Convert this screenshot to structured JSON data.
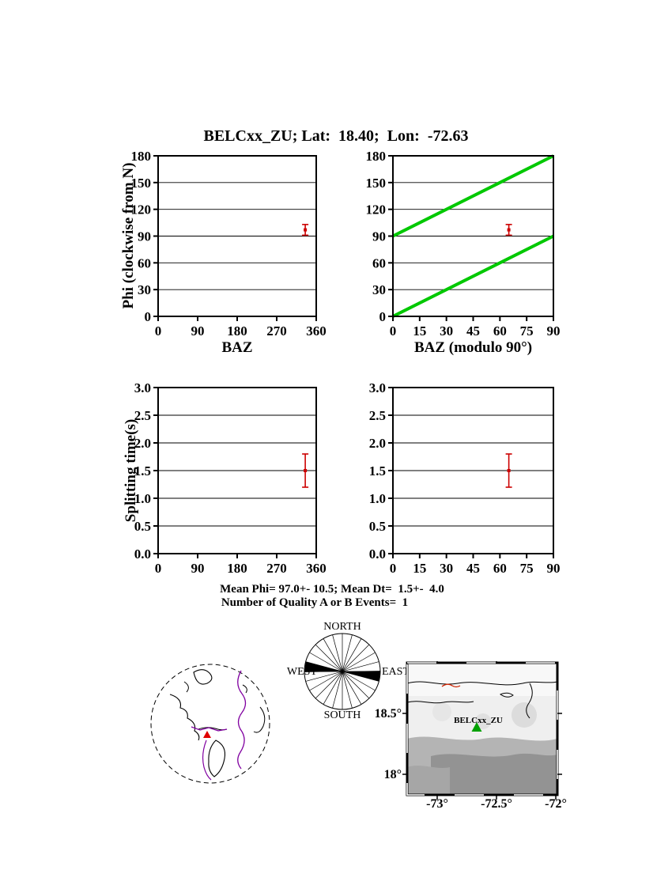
{
  "title": "BELCxx_ZU; Lat:  18.40;  Lon:  -72.63",
  "stats": {
    "mean_line": "Mean Phi= 97.0+- 10.5; Mean Dt=  1.5+-  4.0",
    "events_line": "Number of Quality A or B Events=  1"
  },
  "colors": {
    "error_bar": "#cc0000",
    "null_line": "#00c800",
    "plate_boundary": "#8000a0",
    "coastline": "#000000",
    "station_marker": "#00a000",
    "globe_station": "#e00000",
    "red_contour": "#cc2200"
  },
  "chart_data": [
    {
      "id": "phi-vs-baz",
      "type": "scatter",
      "xlabel": "BAZ",
      "ylabel": "Phi (clockwise from N)",
      "xlim": [
        0,
        360
      ],
      "ylim": [
        0,
        180
      ],
      "xticks": [
        0,
        90,
        180,
        270,
        360
      ],
      "xtick_labels": [
        "0",
        "90",
        "180",
        "270",
        "360"
      ],
      "yticks": [
        0,
        30,
        60,
        90,
        120,
        150,
        180
      ],
      "ytick_labels": [
        "0",
        "30",
        "60",
        "90",
        "120",
        "150",
        "180"
      ],
      "grid": "horizontal",
      "legend": "none",
      "lines": [],
      "points": [
        {
          "x": 335,
          "y": 97,
          "yerr": 6
        }
      ]
    },
    {
      "id": "phi-vs-baz-mod90",
      "type": "scatter",
      "xlabel": "BAZ (modulo 90°)",
      "ylabel": "",
      "xlim": [
        0,
        90
      ],
      "ylim": [
        0,
        180
      ],
      "xticks": [
        0,
        15,
        30,
        45,
        60,
        75,
        90
      ],
      "xtick_labels": [
        "0",
        "15",
        "30",
        "45",
        "60",
        "75",
        "90"
      ],
      "yticks": [
        0,
        30,
        60,
        90,
        120,
        150,
        180
      ],
      "ytick_labels": [
        "0",
        "30",
        "60",
        "90",
        "120",
        "150",
        "180"
      ],
      "grid": "horizontal",
      "legend": "none",
      "lines": [
        {
          "points": [
            [
              0,
              90
            ],
            [
              90,
              180
            ]
          ],
          "width": 4
        },
        {
          "points": [
            [
              0,
              0
            ],
            [
              90,
              90
            ]
          ],
          "width": 4
        }
      ],
      "points": [
        {
          "x": 65,
          "y": 97,
          "yerr": 6
        }
      ]
    },
    {
      "id": "dt-vs-baz",
      "type": "scatter",
      "xlabel": "",
      "ylabel": "Splitting time(s)",
      "xlim": [
        0,
        360
      ],
      "ylim": [
        0,
        3
      ],
      "xticks": [
        0,
        90,
        180,
        270,
        360
      ],
      "xtick_labels": [
        "0",
        "90",
        "180",
        "270",
        "360"
      ],
      "yticks": [
        0,
        0.5,
        1,
        1.5,
        2,
        2.5,
        3
      ],
      "ytick_labels": [
        "0.0",
        "0.5",
        "1.0",
        "1.5",
        "2.0",
        "2.5",
        "3.0"
      ],
      "grid": "horizontal",
      "legend": "none",
      "lines": [],
      "points": [
        {
          "x": 335,
          "y": 1.5,
          "yerr": 0.3
        }
      ]
    },
    {
      "id": "dt-vs-baz-mod90",
      "type": "scatter",
      "xlabel": "",
      "ylabel": "",
      "xlim": [
        0,
        90
      ],
      "ylim": [
        0,
        3
      ],
      "xticks": [
        0,
        15,
        30,
        45,
        60,
        75,
        90
      ],
      "xtick_labels": [
        "0",
        "15",
        "30",
        "45",
        "60",
        "75",
        "90"
      ],
      "yticks": [
        0,
        0.5,
        1,
        1.5,
        2,
        2.5,
        3
      ],
      "ytick_labels": [
        "0.0",
        "0.5",
        "1.0",
        "1.5",
        "2.0",
        "2.5",
        "3.0"
      ],
      "grid": "horizontal",
      "legend": "none",
      "lines": [],
      "points": [
        {
          "x": 65,
          "y": 1.5,
          "yerr": 0.3
        }
      ]
    }
  ],
  "rose": {
    "north": "NORTH",
    "east": "EAST",
    "south": "SOUTH",
    "west": "WEST",
    "fast_azimuth_deg": 97,
    "wedge_half_width_deg": 8
  },
  "map": {
    "station": "BELCxx_ZU",
    "lon_ticks": [
      "-73°",
      "-72.5°",
      "-72°"
    ],
    "lat_ticks": [
      "18.5°",
      "18°"
    ]
  }
}
